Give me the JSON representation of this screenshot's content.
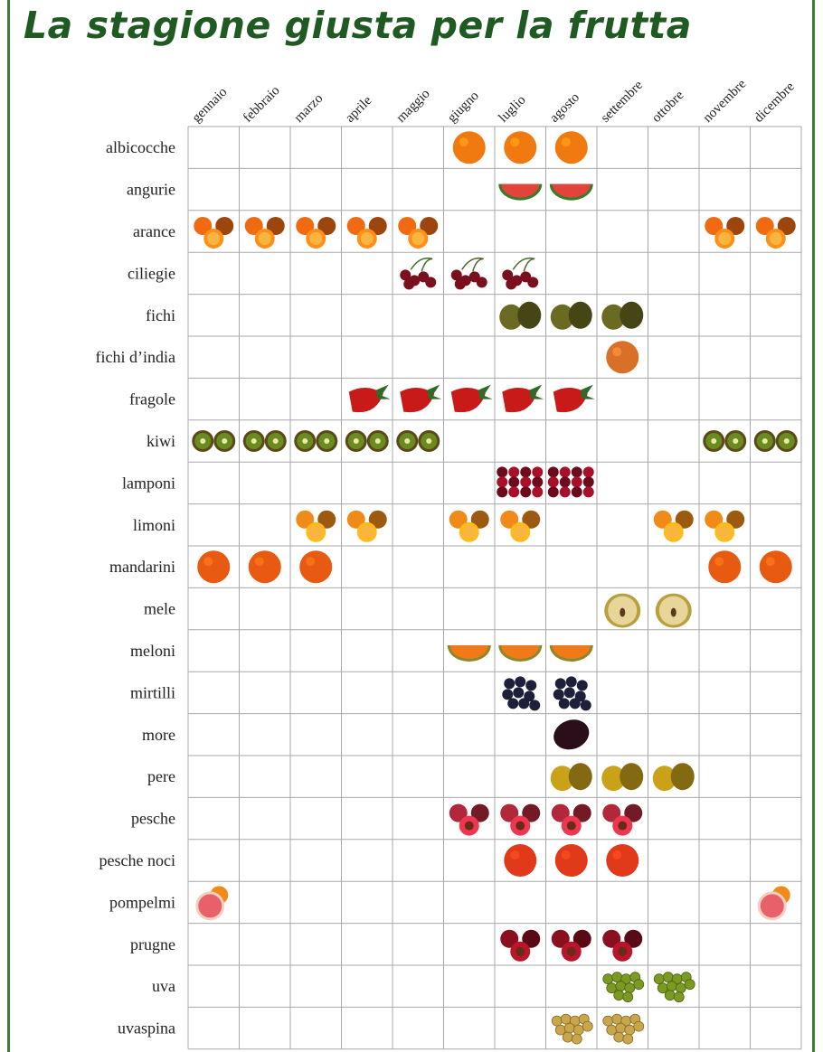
{
  "title": "La stagione giusta per la frutta",
  "chart_data": {
    "type": "table",
    "title": "La stagione giusta per la frutta",
    "months": [
      "gennaio",
      "febbraio",
      "marzo",
      "aprile",
      "maggio",
      "giugno",
      "luglio",
      "agosto",
      "settembre",
      "ottobre",
      "novembre",
      "dicembre"
    ],
    "fruits": [
      {
        "name": "albicocche",
        "months": [
          6,
          7,
          8
        ],
        "icon": "apricot-icon",
        "color": "#f07a10"
      },
      {
        "name": "angurie",
        "months": [
          7,
          8
        ],
        "icon": "watermelon-icon",
        "color": "#e0443a"
      },
      {
        "name": "arance",
        "months": [
          1,
          2,
          3,
          4,
          5,
          11,
          12
        ],
        "icon": "orange-icon",
        "color": "#f06a12"
      },
      {
        "name": "ciliegie",
        "months": [
          5,
          6,
          7
        ],
        "icon": "cherry-icon",
        "color": "#7a0f1e"
      },
      {
        "name": "fichi",
        "months": [
          7,
          8,
          9
        ],
        "icon": "fig-icon",
        "color": "#6b6a22"
      },
      {
        "name": "fichi d’india",
        "months": [
          9
        ],
        "icon": "prickly-pear-icon",
        "color": "#d9702a"
      },
      {
        "name": "fragole",
        "months": [
          4,
          5,
          6,
          7,
          8
        ],
        "icon": "strawberry-icon",
        "color": "#c91a1a"
      },
      {
        "name": "kiwi",
        "months": [
          1,
          2,
          3,
          4,
          5,
          11,
          12
        ],
        "icon": "kiwi-icon",
        "color": "#6b8a1f"
      },
      {
        "name": "lamponi",
        "months": [
          7,
          8
        ],
        "icon": "raspberry-icon",
        "color": "#a8102a"
      },
      {
        "name": "limoni",
        "months": [
          3,
          4,
          6,
          7,
          10,
          11
        ],
        "icon": "lemon-icon",
        "color": "#f08a18"
      },
      {
        "name": "mandarini",
        "months": [
          1,
          2,
          3,
          11,
          12
        ],
        "icon": "mandarin-icon",
        "color": "#e85a12"
      },
      {
        "name": "mele",
        "months": [
          9,
          10
        ],
        "icon": "apple-icon",
        "color": "#e8d59a"
      },
      {
        "name": "meloni",
        "months": [
          6,
          7,
          8
        ],
        "icon": "melon-icon",
        "color": "#f07a1a"
      },
      {
        "name": "mirtilli",
        "months": [
          7,
          8
        ],
        "icon": "blueberry-icon",
        "color": "#1e1f3a"
      },
      {
        "name": "more",
        "months": [
          8
        ],
        "icon": "blackberry-icon",
        "color": "#2a0f1a"
      },
      {
        "name": "pere",
        "months": [
          8,
          9,
          10
        ],
        "icon": "pear-icon",
        "color": "#c9a21a"
      },
      {
        "name": "pesche",
        "months": [
          6,
          7,
          8,
          9
        ],
        "icon": "peach-icon",
        "color": "#b0283a"
      },
      {
        "name": "pesche noci",
        "months": [
          7,
          8,
          9
        ],
        "icon": "nectarine-icon",
        "color": "#e03a1a"
      },
      {
        "name": "pompelmi",
        "months": [
          1,
          12
        ],
        "icon": "grapefruit-icon",
        "color": "#e8606a"
      },
      {
        "name": "prugne",
        "months": [
          7,
          8,
          9
        ],
        "icon": "plum-icon",
        "color": "#8a1020"
      },
      {
        "name": "uva",
        "months": [
          9,
          10
        ],
        "icon": "grape-icon",
        "color": "#7a9a22"
      },
      {
        "name": "uvaspina",
        "months": [
          8,
          9
        ],
        "icon": "gooseberry-icon",
        "color": "#c9a64a"
      }
    ]
  }
}
